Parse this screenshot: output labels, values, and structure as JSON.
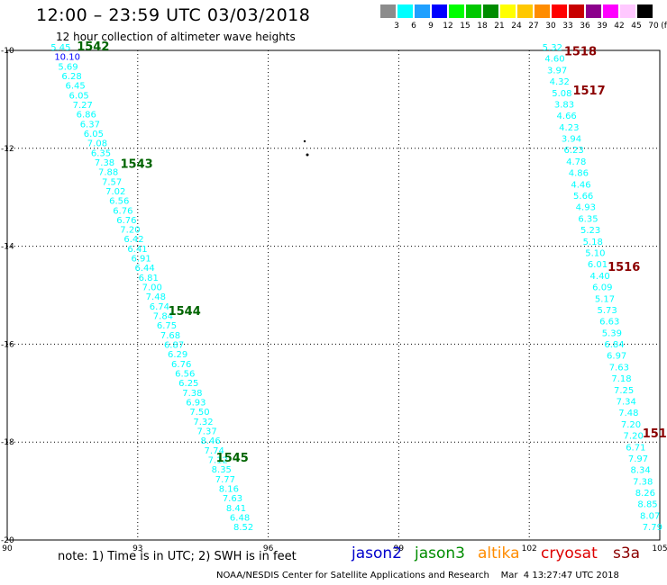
{
  "header": {
    "title": "12:00 – 23:59 UTC 03/03/2018",
    "subtitle": "12 hour collection of altimeter wave heights"
  },
  "legend": {
    "colors": [
      "#8c8c8c",
      "#00ffff",
      "#1fa0ff",
      "#0000ff",
      "#00ff00",
      "#00c800",
      "#008c00",
      "#ffff00",
      "#ffc800",
      "#ff8c00",
      "#ff0000",
      "#c80000",
      "#8c008c",
      "#ff00ff",
      "#ffc8ff",
      "#000000"
    ],
    "labels": [
      "3",
      "6",
      "9",
      "12",
      "15",
      "18",
      "21",
      "24",
      "27",
      "30",
      "33",
      "36",
      "39",
      "42",
      "45",
      "70"
    ],
    "unit": "(ft)"
  },
  "axes": {
    "x_ticks": [
      "90",
      "93",
      "96",
      "99",
      "102",
      "105"
    ],
    "y_ticks": [
      "-10",
      "-12",
      "-14",
      "-16",
      "-18",
      "-20"
    ],
    "x_range": [
      90,
      105
    ],
    "y_range": [
      -10,
      -20
    ]
  },
  "swaths": [
    {
      "name": "west",
      "color": "#00ffff",
      "start": [
        91.0,
        -10.0
      ],
      "end": [
        95.2,
        -19.8
      ],
      "values": [
        "5.45",
        "10.10",
        "5.69",
        "6.28",
        "6.45",
        "6.05",
        "7.27",
        "6.86",
        "6.37",
        "6.05",
        "7.08",
        "6.35",
        "7.38",
        "7.88",
        "7.57",
        "7.02",
        "6.56",
        "6.76",
        "6.76",
        "7.20",
        "6.42",
        "6.41",
        "6.91",
        "6.44",
        "6.81",
        "7.00",
        "7.48",
        "6.74",
        "7.84",
        "6.75",
        "7.68",
        "6.87",
        "6.29",
        "6.76",
        "6.56",
        "6.25",
        "7.38",
        "6.93",
        "7.50",
        "7.32",
        "7.37",
        "8.46",
        "7.74",
        "7.12",
        "8.35",
        "7.77",
        "8.16",
        "7.63",
        "8.41",
        "6.48",
        "8.52"
      ],
      "special": {
        "1": "#0000ff"
      }
    },
    {
      "name": "east",
      "color": "#00ffff",
      "start": [
        102.3,
        -10.0
      ],
      "end": [
        104.6,
        -19.8
      ],
      "values": [
        "5.32",
        "4.60",
        "3.97",
        "4.32",
        "5.08",
        "3.83",
        "4.66",
        "4.23",
        "3.94",
        "6.23",
        "4.78",
        "4.86",
        "4.46",
        "5.66",
        "4.93",
        "6.35",
        "5.23",
        "5.18",
        "5.10",
        "6.01",
        "4.40",
        "6.09",
        "5.17",
        "5.73",
        "6.63",
        "5.39",
        "6.84",
        "6.97",
        "7.63",
        "7.18",
        "7.25",
        "7.34",
        "7.48",
        "7.20",
        "7.20",
        "6.71",
        "7.97",
        "8.34",
        "7.38",
        "8.26",
        "8.85",
        "8.07",
        "7.79"
      ],
      "special": {}
    }
  ],
  "pass_labels": [
    {
      "text": "1542",
      "lon": 91.6,
      "lat": -10.0,
      "color": "#006400"
    },
    {
      "text": "1543",
      "lon": 92.6,
      "lat": -12.4,
      "color": "#006400"
    },
    {
      "text": "1544",
      "lon": 93.7,
      "lat": -15.4,
      "color": "#006400"
    },
    {
      "text": "1545",
      "lon": 94.8,
      "lat": -18.4,
      "color": "#006400"
    },
    {
      "text": "1518",
      "lon": 102.8,
      "lat": -10.1,
      "color": "#8b0000"
    },
    {
      "text": "1517",
      "lon": 103.0,
      "lat": -10.9,
      "color": "#8b0000"
    },
    {
      "text": "1516",
      "lon": 103.8,
      "lat": -14.5,
      "color": "#8b0000"
    },
    {
      "text": "151",
      "lon": 104.6,
      "lat": -17.9,
      "color": "#8b0000"
    }
  ],
  "note": "note:  1) Time is in UTC;  2) SWH is in feet",
  "satellites": [
    {
      "name": "jason2",
      "color": "#0000cc"
    },
    {
      "name": "jason3",
      "color": "#008c00"
    },
    {
      "name": "altika",
      "color": "#ff8c00"
    },
    {
      "name": "cryosat",
      "color": "#dd0000"
    },
    {
      "name": "s3a",
      "color": "#8b0000"
    }
  ],
  "footer": "NOAA/NESDIS Center for Satellite Applications and Research    Mar  4 13:27:47 UTC 2018"
}
